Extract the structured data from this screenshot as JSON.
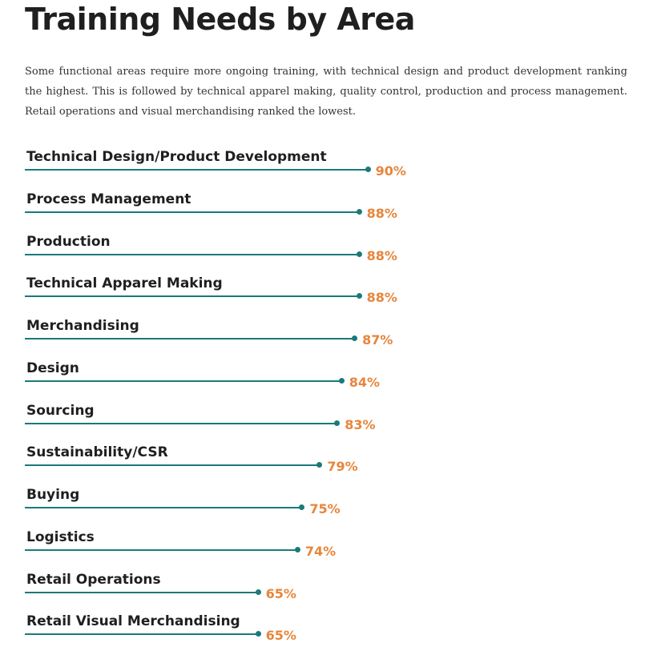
{
  "header": {
    "title": "Training Needs by Area",
    "intro": "Some functional areas require more ongoing training, with technical design and product development ranking the highest. This is followed by technical apparel making, quality control, production and process management.  Retail operations and visual merchandising ranked the lowest."
  },
  "colors": {
    "line": "#1a7a78",
    "value": "#e6863c",
    "title": "#1f1f1f"
  },
  "chart_data": {
    "type": "bar",
    "title": "Training Needs by Area",
    "xlabel": "",
    "ylabel": "",
    "unit": "%",
    "categories": [
      "Technical Design/Product Development",
      "Process Management",
      "Production",
      "Technical Apparel Making",
      "Merchandising",
      "Design",
      "Sourcing",
      "Sustainability/CSR",
      "Buying",
      "Logistics",
      "Retail Operations",
      "Retail Visual Merchandising"
    ],
    "values": [
      90,
      88,
      88,
      88,
      87,
      84,
      83,
      79,
      75,
      74,
      65,
      65
    ],
    "labels": [
      "90%",
      "88%",
      "88%",
      "88%",
      "87%",
      "84%",
      "83%",
      "79%",
      "75%",
      "74%",
      "65%",
      "65%"
    ]
  }
}
